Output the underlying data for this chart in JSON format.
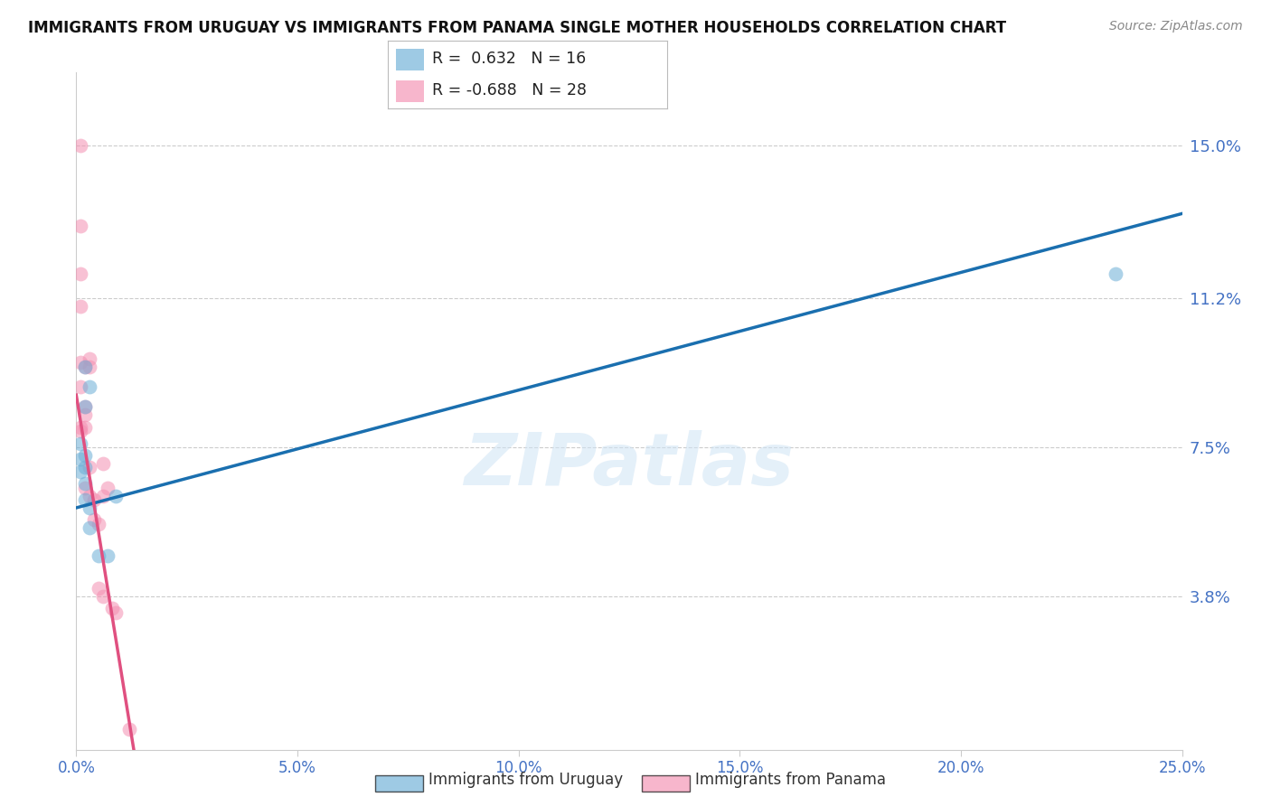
{
  "title": "IMMIGRANTS FROM URUGUAY VS IMMIGRANTS FROM PANAMA SINGLE MOTHER HOUSEHOLDS CORRELATION CHART",
  "source": "Source: ZipAtlas.com",
  "ylabel": "Single Mother Households",
  "ytick_labels": [
    "15.0%",
    "11.2%",
    "7.5%",
    "3.8%"
  ],
  "ytick_values": [
    0.15,
    0.112,
    0.075,
    0.038
  ],
  "xtick_labels": [
    "0.0%",
    "5.0%",
    "10.0%",
    "15.0%",
    "20.0%",
    "25.0%"
  ],
  "xtick_values": [
    0.0,
    0.05,
    0.1,
    0.15,
    0.2,
    0.25
  ],
  "xlim": [
    0.0,
    0.25
  ],
  "ylim": [
    0.0,
    0.168
  ],
  "watermark": "ZIPatlas",
  "uruguay_color": "#6baed6",
  "panama_color": "#f48fb1",
  "line_blue": "#1a6faf",
  "line_pink": "#e05080",
  "uruguay_label": "Immigrants from Uruguay",
  "panama_label": "Immigrants from Panama",
  "uruguay_scatter": [
    [
      0.001,
      0.076
    ],
    [
      0.001,
      0.072
    ],
    [
      0.001,
      0.069
    ],
    [
      0.002,
      0.095
    ],
    [
      0.002,
      0.085
    ],
    [
      0.002,
      0.073
    ],
    [
      0.002,
      0.07
    ],
    [
      0.002,
      0.066
    ],
    [
      0.002,
      0.062
    ],
    [
      0.003,
      0.09
    ],
    [
      0.003,
      0.06
    ],
    [
      0.003,
      0.055
    ],
    [
      0.005,
      0.048
    ],
    [
      0.007,
      0.048
    ],
    [
      0.009,
      0.063
    ],
    [
      0.235,
      0.118
    ]
  ],
  "panama_scatter": [
    [
      0.001,
      0.15
    ],
    [
      0.001,
      0.13
    ],
    [
      0.001,
      0.118
    ],
    [
      0.001,
      0.11
    ],
    [
      0.001,
      0.096
    ],
    [
      0.001,
      0.09
    ],
    [
      0.001,
      0.08
    ],
    [
      0.001,
      0.079
    ],
    [
      0.002,
      0.095
    ],
    [
      0.002,
      0.085
    ],
    [
      0.002,
      0.083
    ],
    [
      0.002,
      0.08
    ],
    [
      0.002,
      0.065
    ],
    [
      0.003,
      0.097
    ],
    [
      0.003,
      0.095
    ],
    [
      0.003,
      0.07
    ],
    [
      0.003,
      0.063
    ],
    [
      0.004,
      0.062
    ],
    [
      0.004,
      0.057
    ],
    [
      0.005,
      0.056
    ],
    [
      0.005,
      0.04
    ],
    [
      0.006,
      0.071
    ],
    [
      0.006,
      0.063
    ],
    [
      0.006,
      0.038
    ],
    [
      0.007,
      0.065
    ],
    [
      0.008,
      0.035
    ],
    [
      0.009,
      0.034
    ],
    [
      0.012,
      0.005
    ]
  ],
  "blue_line_x": [
    0.0,
    0.25
  ],
  "blue_line_y": [
    0.06,
    0.133
  ],
  "pink_line_x": [
    0.0,
    0.013
  ],
  "pink_line_y": [
    0.088,
    0.0
  ]
}
